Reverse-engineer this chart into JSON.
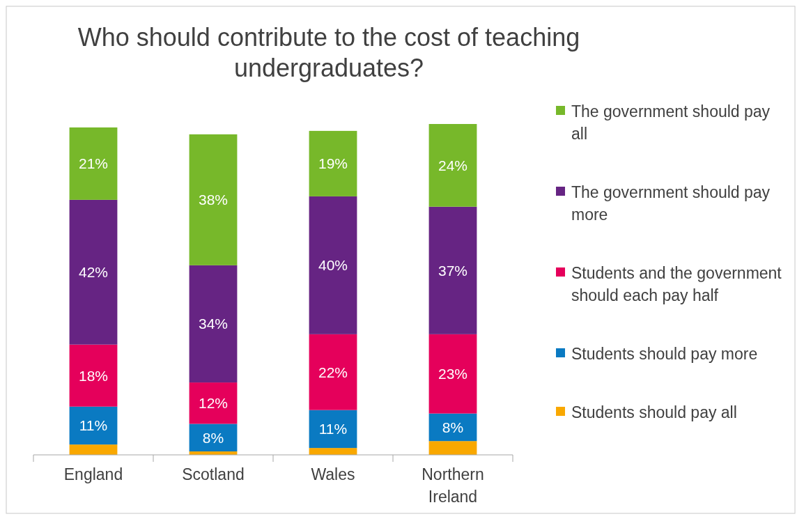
{
  "chart_data": {
    "type": "bar",
    "title": "Who should contribute to the cost of teaching undergraduates?",
    "categories": [
      "England",
      "Scotland",
      "Wales",
      "Northern Ireland"
    ],
    "stacked": true,
    "legend": "right",
    "series": [
      {
        "name": "Students should pay all",
        "color": "#f9a800",
        "values": [
          3,
          1,
          2,
          4
        ],
        "value_labels": [
          null,
          null,
          null,
          null
        ]
      },
      {
        "name": "Students should pay more",
        "color": "#0a7ac2",
        "values": [
          11,
          8,
          11,
          8
        ],
        "value_labels": [
          "11%",
          "8%",
          "11%",
          "8%"
        ]
      },
      {
        "name": "Students and the government should each pay half",
        "color": "#e5005b",
        "values": [
          18,
          12,
          22,
          23
        ],
        "value_labels": [
          "18%",
          "12%",
          "22%",
          "23%"
        ]
      },
      {
        "name": "The government should pay more",
        "color": "#662483",
        "values": [
          42,
          34,
          40,
          37
        ],
        "value_labels": [
          "42%",
          "34%",
          "40%",
          "37%"
        ]
      },
      {
        "name": "The government should pay all",
        "color": "#77b82a",
        "values": [
          21,
          38,
          19,
          24
        ],
        "value_labels": [
          "21%",
          "38%",
          "19%",
          "24%"
        ]
      }
    ]
  }
}
